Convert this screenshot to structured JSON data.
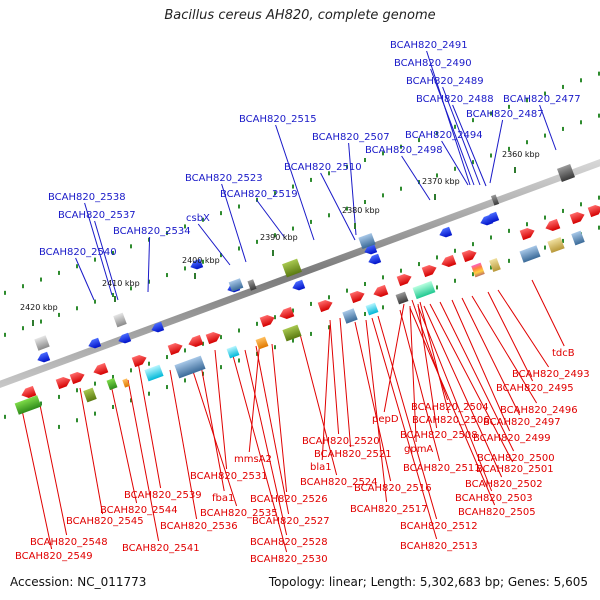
{
  "title": "Bacillus cereus AH820, complete genome",
  "footer": {
    "accession": "Accession: NC_011773",
    "topology": "Topology: linear; Length: 5,302,683 bp; Genes: 5,605"
  },
  "colors": {
    "upper_label": "#1a1ac8",
    "lower_label": "#e00000",
    "axis": "#8c8c8c",
    "tick_dots": "#2e8b2e"
  },
  "ticks": [
    {
      "label": "2360 kbp"
    },
    {
      "label": "2370 kbp"
    },
    {
      "label": "2380 kbp"
    },
    {
      "label": "2390 kbp"
    },
    {
      "label": "2400 kbp"
    },
    {
      "label": "2410 kbp"
    },
    {
      "label": "2420 kbp"
    }
  ],
  "upper_labels": [
    "BCAH820_2491",
    "BCAH820_2490",
    "BCAH820_2489",
    "BCAH820_2488",
    "BCAH820_2477",
    "BCAH820_2515",
    "BCAH820_2487",
    "BCAH820_2507",
    "BCAH820_2494",
    "BCAH820_2498",
    "BCAH820_2510",
    "BCAH820_2523",
    "BCAH820_2519",
    "BCAH820_2538",
    "BCAH820_2537",
    "csbX",
    "BCAH820_2534",
    "BCAH820_2540"
  ],
  "lower_labels": [
    "tdcB",
    "BCAH820_2493",
    "BCAH820_2495",
    "BCAH820_2496",
    "BCAH820_2504",
    "pepD",
    "BCAH820_2506",
    "BCAH820_2497",
    "gpmA",
    "BCAH820_2508",
    "BCAH820_2499",
    "BCAH820_2520",
    "BCAH820_2521",
    "BCAH820_2500",
    "mmsA2",
    "bla1",
    "BCAH820_2511",
    "BCAH820_2501",
    "BCAH820_2531",
    "BCAH820_2524",
    "BCAH820_2502",
    "BCAH820_2539",
    "fba1",
    "BCAH820_2526",
    "BCAH820_2516",
    "BCAH820_2503",
    "BCAH820_2544",
    "BCAH820_2535",
    "BCAH820_2517",
    "BCAH820_2505",
    "BCAH820_2545",
    "BCAH820_2536",
    "BCAH820_2527",
    "BCAH820_2512",
    "BCAH820_2548",
    "BCAH820_2528",
    "BCAH820_2513",
    "BCAH820_2541",
    "BCAH820_2549",
    "BCAH820_2530"
  ]
}
